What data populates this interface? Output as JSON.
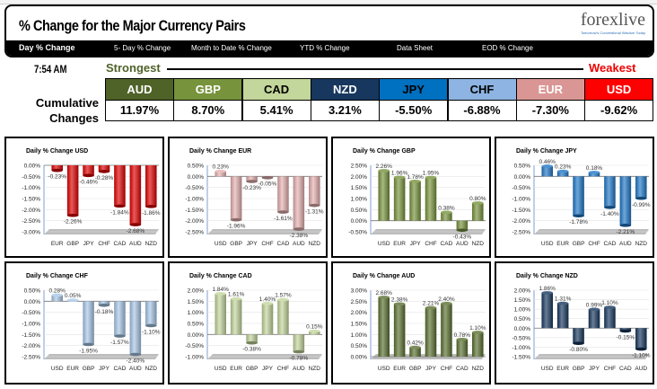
{
  "header": {
    "title": "% Change for the Major Currency Pairs",
    "logo": "forexlive",
    "logo_tagline": "Tomorrow's Conventional Wisdom Today"
  },
  "nav": [
    "Day % Change",
    "5- Day % Change",
    "Month to Date % Change",
    "YTD % Change",
    "Data Sheet",
    "EOD % Change"
  ],
  "time": "7:54 AM",
  "strongest_label": "Strongest",
  "weakest_label": "Weakest",
  "cumulative_label_1": "Cumulative",
  "cumulative_label_2": "Changes",
  "ranking": [
    {
      "currency": "AUD",
      "value": "11.97%",
      "color": "#4f6228",
      "text": "#ffffff"
    },
    {
      "currency": "GBP",
      "value": "8.70%",
      "color": "#77933c",
      "text": "#ffffff"
    },
    {
      "currency": "CAD",
      "value": "5.41%",
      "color": "#c3d69b",
      "text": "#000000"
    },
    {
      "currency": "NZD",
      "value": "3.21%",
      "color": "#17375e",
      "text": "#ffffff"
    },
    {
      "currency": "JPY",
      "value": "-5.50%",
      "color": "#0070c0",
      "text": "#000000"
    },
    {
      "currency": "CHF",
      "value": "-6.88%",
      "color": "#8db4e2",
      "text": "#000000"
    },
    {
      "currency": "EUR",
      "value": "-7.30%",
      "color": "#da9694",
      "text": "#ffffff"
    },
    {
      "currency": "USD",
      "value": "-9.62%",
      "color": "#ff0000",
      "text": "#ffffff"
    }
  ],
  "chart_data": [
    {
      "type": "bar",
      "title": "Daily % Change USD",
      "color": "#e00000",
      "categories": [
        "EUR",
        "GBP",
        "JPY",
        "CHF",
        "CAD",
        "AUD",
        "NZD"
      ],
      "values": [
        -0.23,
        -2.26,
        -0.46,
        -0.28,
        -1.84,
        -2.68,
        -1.86
      ],
      "labels": [
        "-0.23%",
        "-2.26%",
        "-0.46%",
        "-0.28%",
        "-1.84%",
        "-2.68%",
        "-1.86%"
      ],
      "ylim": [
        -3,
        0
      ],
      "yticks": [
        "0.00%",
        "-0.50%",
        "-1.00%",
        "-1.50%",
        "-2.00%",
        "-2.50%",
        "-3.00%"
      ]
    },
    {
      "type": "bar",
      "title": "Daily % Change EUR",
      "color": "#e6b0b0",
      "categories": [
        "USD",
        "GBP",
        "JPY",
        "CHF",
        "CAD",
        "AUD",
        "NZD"
      ],
      "values": [
        0.23,
        -1.96,
        -0.23,
        -0.05,
        -1.61,
        -2.38,
        -1.31
      ],
      "labels": [
        "0.23%",
        "-1.96%",
        "-0.23%",
        "-0.05%",
        "-1.61%",
        "-2.38%",
        "-1.31%"
      ],
      "ylim": [
        -2.5,
        0.5
      ],
      "yticks": [
        "0.50%",
        "0.00%",
        "-0.50%",
        "-1.00%",
        "-1.50%",
        "-2.00%",
        "-2.50%"
      ]
    },
    {
      "type": "bar",
      "title": "Daily % Change GBP",
      "color": "#77933c",
      "categories": [
        "USD",
        "EUR",
        "JPY",
        "CHF",
        "CAD",
        "AUD",
        "NZD"
      ],
      "values": [
        2.26,
        1.96,
        1.78,
        1.95,
        0.38,
        -0.43,
        0.8
      ],
      "labels": [
        "2.26%",
        "1.96%",
        "1.78%",
        "1.95%",
        "0.38%",
        "-0.43%",
        "0.80%"
      ],
      "ylim": [
        -0.5,
        2.5
      ],
      "yticks": [
        "2.50%",
        "2.00%",
        "1.50%",
        "1.00%",
        "0.50%",
        "0.00%",
        "-0.50%"
      ]
    },
    {
      "type": "bar",
      "title": "Daily % Change JPY",
      "color": "#1f78c8",
      "categories": [
        "USD",
        "EUR",
        "GBP",
        "CHF",
        "CAD",
        "AUD",
        "NZD"
      ],
      "values": [
        0.46,
        0.23,
        -1.78,
        0.18,
        -1.4,
        -2.21,
        -0.99
      ],
      "labels": [
        "0.46%",
        "0.23%",
        "-1.78%",
        "0.18%",
        "-1.40%",
        "-2.21%",
        "-0.99%"
      ],
      "ylim": [
        -2.5,
        0.5
      ],
      "yticks": [
        "0.50%",
        "0.00%",
        "-0.50%",
        "-1.00%",
        "-1.50%",
        "-2.00%",
        "-2.50%"
      ]
    },
    {
      "type": "bar",
      "title": "Daily % Change CHF",
      "color": "#a9c8e8",
      "categories": [
        "USD",
        "EUR",
        "GBP",
        "JPY",
        "CAD",
        "AUD",
        "NZD"
      ],
      "values": [
        0.28,
        0.05,
        -1.95,
        -0.18,
        -1.57,
        -2.4,
        -1.1
      ],
      "labels": [
        "0.28%",
        "0.05%",
        "-1.95%",
        "-0.18%",
        "-1.57%",
        "-2.40%",
        "-1.10%"
      ],
      "ylim": [
        -2.5,
        0.5
      ],
      "yticks": [
        "0.50%",
        "0.00%",
        "-0.50%",
        "-1.00%",
        "-1.50%",
        "-2.00%",
        "-2.50%"
      ]
    },
    {
      "type": "bar",
      "title": "Daily % Change CAD",
      "color": "#c3d69b",
      "categories": [
        "USD",
        "EUR",
        "GBP",
        "JPY",
        "CHF",
        "AUD",
        "NZD"
      ],
      "values": [
        1.84,
        1.61,
        -0.38,
        1.4,
        1.57,
        -0.78,
        0.15
      ],
      "labels": [
        "1.84%",
        "1.61%",
        "-0.38%",
        "1.40%",
        "1.57%",
        "-0.78%",
        "0.15%"
      ],
      "ylim": [
        -1,
        2
      ],
      "yticks": [
        "2.00%",
        "1.50%",
        "1.00%",
        "0.50%",
        "0.00%",
        "-0.50%",
        "-1.00%"
      ]
    },
    {
      "type": "bar",
      "title": "Daily % Change AUD",
      "color": "#5a7030",
      "categories": [
        "USD",
        "EUR",
        "GBP",
        "JPY",
        "CHF",
        "CAD",
        "NZD"
      ],
      "values": [
        2.68,
        2.38,
        0.42,
        2.21,
        2.4,
        0.78,
        1.1
      ],
      "labels": [
        "2.68%",
        "2.38%",
        "0.42%",
        "2.21%",
        "2.40%",
        "0.78%",
        "1.10%"
      ],
      "ylim": [
        0,
        3
      ],
      "yticks": [
        "3.00%",
        "2.50%",
        "2.00%",
        "1.50%",
        "1.00%",
        "0.50%",
        "0.00%"
      ]
    },
    {
      "type": "bar",
      "title": "Daily % Change NZD",
      "color": "#17375e",
      "categories": [
        "USD",
        "EUR",
        "GBP",
        "JPY",
        "CHF",
        "CAD",
        "AUD"
      ],
      "values": [
        1.86,
        1.31,
        -0.8,
        0.99,
        1.1,
        -0.15,
        -1.1
      ],
      "labels": [
        "1.86%",
        "1.31%",
        "-0.80%",
        "0.99%",
        "1.10%",
        "-0.15%",
        "-1.10%"
      ],
      "ylim": [
        -1.5,
        2
      ],
      "yticks": [
        "2.00%",
        "1.50%",
        "1.00%",
        "0.50%",
        "0.00%",
        "-0.50%",
        "-1.00%",
        "-1.50%"
      ]
    }
  ]
}
